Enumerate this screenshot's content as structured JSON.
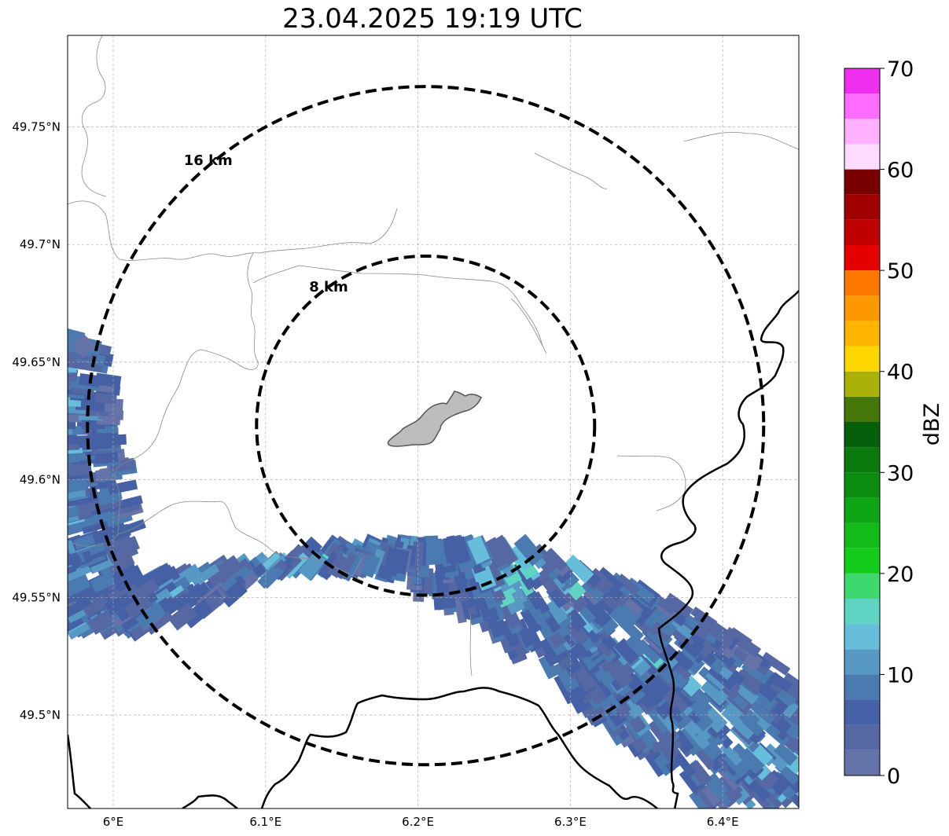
{
  "title": "23.04.2025 19:19 UTC",
  "map": {
    "projection": "lat-lon",
    "extent": {
      "lon_min": 5.97,
      "lon_max": 6.45,
      "lat_min": 49.46,
      "lat_max": 49.79
    },
    "lat_ticks": [
      {
        "value": 49.75,
        "label": "49.75°N"
      },
      {
        "value": 49.7,
        "label": "49.7°N"
      },
      {
        "value": 49.65,
        "label": "49.65°N"
      },
      {
        "value": 49.6,
        "label": "49.6°N"
      },
      {
        "value": 49.55,
        "label": "49.55°N"
      },
      {
        "value": 49.5,
        "label": "49.5°N"
      }
    ],
    "lon_ticks": [
      {
        "value": 6.0,
        "label": "6°E"
      },
      {
        "value": 6.1,
        "label": "6.1°E"
      },
      {
        "value": 6.2,
        "label": "6.2°E"
      },
      {
        "value": 6.3,
        "label": "6.3°E"
      },
      {
        "value": 6.4,
        "label": "6.4°E"
      }
    ],
    "gridlines": true,
    "range_rings": [
      {
        "label": "8 km",
        "radius_km": 8
      },
      {
        "label": "16 km",
        "radius_km": 16
      }
    ],
    "radar_center": {
      "lon": 6.205,
      "lat": 49.623
    },
    "highlighted_area": "grey city polygon at radar center",
    "colors": {
      "border": "#000000",
      "admin": "#888888",
      "highlight_fill": "#bdbdbd"
    }
  },
  "colorbar": {
    "title": "dBZ",
    "min": 0,
    "max": 70,
    "tick_labels": [
      "0",
      "10",
      "20",
      "30",
      "40",
      "50",
      "60",
      "70"
    ],
    "bins": [
      {
        "from": 0,
        "to": 2.5,
        "color": "#6573a8"
      },
      {
        "from": 2.5,
        "to": 5,
        "color": "#5568a4"
      },
      {
        "from": 5,
        "to": 7.5,
        "color": "#4560a5"
      },
      {
        "from": 7.5,
        "to": 10,
        "color": "#4a7ab0"
      },
      {
        "from": 10,
        "to": 12.5,
        "color": "#5898c4"
      },
      {
        "from": 12.5,
        "to": 15,
        "color": "#66bedb"
      },
      {
        "from": 15,
        "to": 17.5,
        "color": "#60d4c4"
      },
      {
        "from": 17.5,
        "to": 20,
        "color": "#3fd86e"
      },
      {
        "from": 20,
        "to": 22.5,
        "color": "#14cc1c"
      },
      {
        "from": 22.5,
        "to": 25,
        "color": "#12bb18"
      },
      {
        "from": 25,
        "to": 27.5,
        "color": "#0ea614"
      },
      {
        "from": 27.5,
        "to": 30,
        "color": "#0c8d10"
      },
      {
        "from": 30,
        "to": 32.5,
        "color": "#0a7a0e"
      },
      {
        "from": 32.5,
        "to": 35,
        "color": "#065f0a"
      },
      {
        "from": 35,
        "to": 37.5,
        "color": "#45770a"
      },
      {
        "from": 37.5,
        "to": 40,
        "color": "#aab20a"
      },
      {
        "from": 40,
        "to": 42.5,
        "color": "#fed700"
      },
      {
        "from": 42.5,
        "to": 45,
        "color": "#feb500"
      },
      {
        "from": 45,
        "to": 47.5,
        "color": "#fe9800"
      },
      {
        "from": 47.5,
        "to": 50,
        "color": "#fe7800"
      },
      {
        "from": 50,
        "to": 52.5,
        "color": "#e50000"
      },
      {
        "from": 52.5,
        "to": 55,
        "color": "#c00000"
      },
      {
        "from": 55,
        "to": 57.5,
        "color": "#a00000"
      },
      {
        "from": 57.5,
        "to": 60,
        "color": "#780000"
      },
      {
        "from": 60,
        "to": 62.5,
        "color": "#ffdcff"
      },
      {
        "from": 62.5,
        "to": 65,
        "color": "#ffb0ff"
      },
      {
        "from": 65,
        "to": 67.5,
        "color": "#ff6cff"
      },
      {
        "from": 67.5,
        "to": 70,
        "color": "#ee30ee"
      }
    ]
  }
}
